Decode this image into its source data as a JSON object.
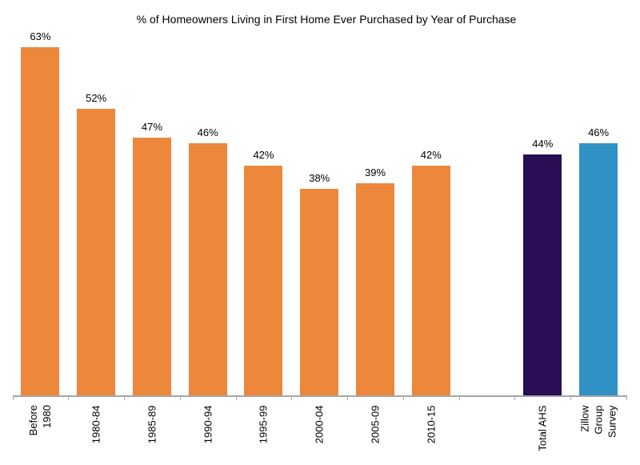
{
  "chart_data": {
    "type": "bar",
    "title": "% of Homeowners Living in First Home Ever Purchased by Year of Purchase",
    "xlabel": "",
    "ylabel": "",
    "categories": [
      "Before 1980",
      "1980-84",
      "1985-89",
      "1990-94",
      "1995-99",
      "2000-04",
      "2005-09",
      "2010-15",
      "",
      "Total AHS",
      "Zillow Group Survey"
    ],
    "category_label_lines": [
      [
        "Before",
        "1980"
      ],
      [
        "1980-84"
      ],
      [
        "1985-89"
      ],
      [
        "1990-94"
      ],
      [
        "1995-99"
      ],
      [
        "2000-04"
      ],
      [
        "2005-09"
      ],
      [
        "2010-15"
      ],
      [],
      [
        "Total AHS"
      ],
      [
        "Zillow",
        "Group",
        "Survey"
      ]
    ],
    "values": [
      63,
      52,
      47,
      46,
      42,
      38,
      39,
      42,
      null,
      44,
      46
    ],
    "value_labels": [
      "63%",
      "52%",
      "47%",
      "46%",
      "42%",
      "38%",
      "39%",
      "42%",
      "",
      "44%",
      "46%"
    ],
    "bar_colors": [
      "#EC873C",
      "#EC873C",
      "#EC873C",
      "#EC873C",
      "#EC873C",
      "#EC873C",
      "#EC873C",
      "#EC873C",
      null,
      "#2A0E55",
      "#3092C5"
    ],
    "series_legend": null,
    "ylim": [
      0,
      63
    ],
    "grid": false,
    "axis_color": "#A6A6A6",
    "text_color": "#000000",
    "background_color": "#FFFFFF"
  }
}
